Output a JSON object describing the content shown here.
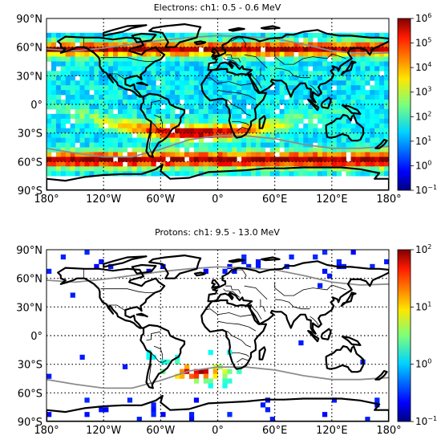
{
  "panels": [
    {
      "id": "electrons",
      "title": "Electrons: ch1: 0.5 - 0.6 MeV",
      "y_tick_labels": [
        "90°N",
        "60°N",
        "30°N",
        "0°",
        "30°S",
        "60°S",
        "90°S"
      ],
      "x_tick_labels": [
        "180°",
        "120°W",
        "60°W",
        "0°",
        "60°E",
        "120°E",
        "180°"
      ],
      "colorbar": {
        "scale": "log",
        "range": [
          0.1,
          1000000
        ],
        "ticks": [
          "10",
          "10",
          "10",
          "10",
          "10",
          "10",
          "10",
          "10"
        ],
        "exponents": [
          "6",
          "5",
          "4",
          "3",
          "2",
          "1",
          "0",
          "−1"
        ],
        "colormap": "jet"
      }
    },
    {
      "id": "protons",
      "title": "Protons: ch1: 9.5 - 13.0 MeV",
      "y_tick_labels": [
        "90°N",
        "60°N",
        "30°N",
        "0°",
        "30°S",
        "60°S",
        "90°S"
      ],
      "x_tick_labels": [
        "180°",
        "120°W",
        "60°W",
        "0°",
        "60°E",
        "120°E",
        "180°"
      ],
      "colorbar": {
        "scale": "log",
        "range": [
          0.1,
          100
        ],
        "ticks": [
          "10",
          "10",
          "10",
          "10"
        ],
        "exponents": [
          "2",
          "1",
          "0",
          "−1"
        ],
        "colormap": "jet"
      }
    }
  ]
}
